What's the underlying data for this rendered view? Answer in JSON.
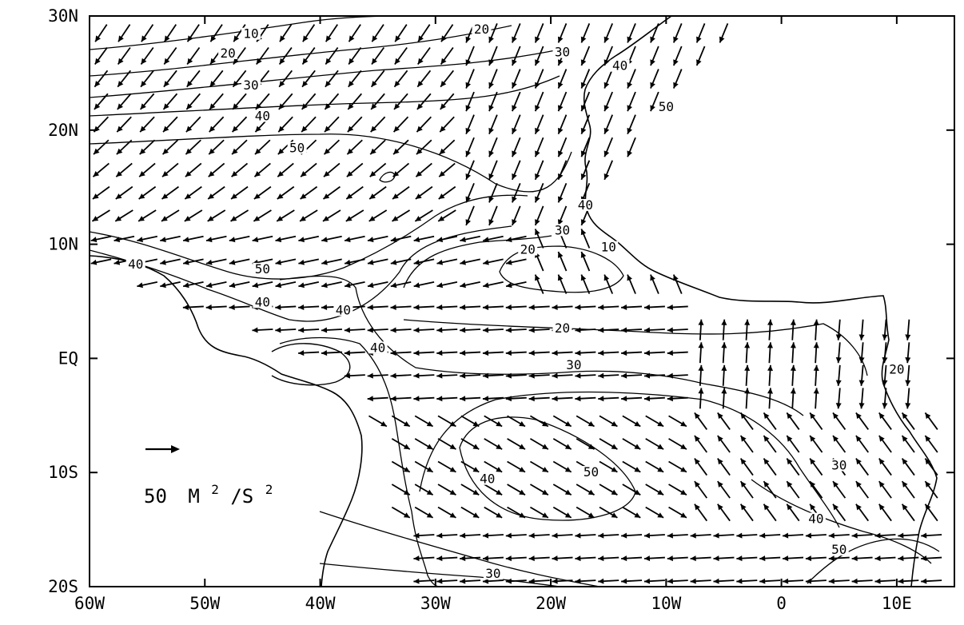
{
  "map": {
    "region": {
      "lon_range": [
        -60,
        15
      ],
      "lat_range": [
        -20,
        30
      ]
    },
    "axes": {
      "y_ticks": [
        {
          "lat": 30,
          "label": "30N"
        },
        {
          "lat": 20,
          "label": "20N"
        },
        {
          "lat": 10,
          "label": "10N"
        },
        {
          "lat": 0,
          "label": "EQ"
        },
        {
          "lat": -10,
          "label": "10S"
        },
        {
          "lat": -20,
          "label": "20S"
        }
      ],
      "x_ticks": [
        {
          "lon": -60,
          "label": "60W"
        },
        {
          "lon": -50,
          "label": "50W"
        },
        {
          "lon": -40,
          "label": "40W"
        },
        {
          "lon": -30,
          "label": "30W"
        },
        {
          "lon": -20,
          "label": "20W"
        },
        {
          "lon": -10,
          "label": "10W"
        },
        {
          "lon": 0,
          "label": "0"
        },
        {
          "lon": 10,
          "label": "10E"
        }
      ]
    },
    "contour_labels": [
      {
        "text": "10",
        "lon": -46,
        "lat": 28.2
      },
      {
        "text": "20",
        "lon": -26,
        "lat": 28.6
      },
      {
        "text": "30",
        "lon": -19,
        "lat": 26.6
      },
      {
        "text": "40",
        "lon": -14,
        "lat": 25.4
      },
      {
        "text": "20",
        "lon": -48,
        "lat": 26.5
      },
      {
        "text": "30",
        "lon": -46,
        "lat": 23.7
      },
      {
        "text": "40",
        "lon": -45,
        "lat": 21.0
      },
      {
        "text": "50",
        "lon": -42,
        "lat": 18.2
      },
      {
        "text": "50",
        "lon": -10,
        "lat": 21.8
      },
      {
        "text": "40",
        "lon": -17,
        "lat": 13.2
      },
      {
        "text": "30",
        "lon": -19,
        "lat": 11.0
      },
      {
        "text": "20",
        "lon": -22,
        "lat": 9.3
      },
      {
        "text": "10",
        "lon": -15,
        "lat": 9.5
      },
      {
        "text": "40",
        "lon": -56,
        "lat": 8.0
      },
      {
        "text": "50",
        "lon": -45,
        "lat": 7.6
      },
      {
        "text": "40",
        "lon": -45,
        "lat": 4.7
      },
      {
        "text": "40",
        "lon": -38,
        "lat": 4.0
      },
      {
        "text": "40",
        "lon": -35,
        "lat": 0.7
      },
      {
        "text": "20",
        "lon": -19,
        "lat": 2.4
      },
      {
        "text": "30",
        "lon": -18,
        "lat": -0.8
      },
      {
        "text": "20",
        "lon": 10,
        "lat": -1.2
      },
      {
        "text": "40",
        "lon": -25.5,
        "lat": -10.8
      },
      {
        "text": "50",
        "lon": -16.5,
        "lat": -10.2
      },
      {
        "text": "30",
        "lon": 5,
        "lat": -9.6
      },
      {
        "text": "40",
        "lon": 3,
        "lat": -14.3
      },
      {
        "text": "50",
        "lon": 5,
        "lat": -17.0
      },
      {
        "text": "30",
        "lon": -25,
        "lat": -19.1
      }
    ],
    "legend": {
      "vector_value": 50,
      "label_number": "50",
      "label_m": "M",
      "label_exp1": "2",
      "label_slash": "/S",
      "label_exp2": "2"
    }
  }
}
